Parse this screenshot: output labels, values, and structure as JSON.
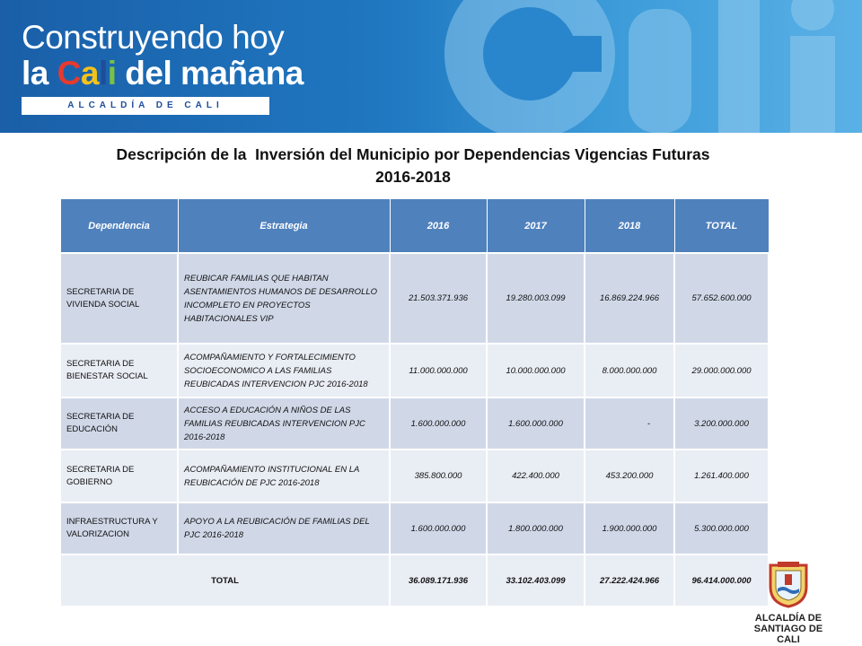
{
  "header": {
    "brand_line1": "Construyendo hoy",
    "brand_line2_pre": "la ",
    "brand_cali": [
      "C",
      "a",
      "l",
      "i"
    ],
    "brand_line2_post": " del mañana",
    "brand_tagline": "ALCALDÍA DE CALI"
  },
  "title": {
    "line1": "Descripción de la  Inversión del Municipio por Dependencias Vigencias Futuras",
    "line2": "2016-2018"
  },
  "table": {
    "headers": [
      "Dependencia",
      "Estrategia",
      "2016",
      "2017",
      "2018",
      "TOTAL"
    ],
    "rows": [
      {
        "dep": "SECRETARIA DE VIVIENDA SOCIAL",
        "est": "REUBICAR FAMILIAS QUE HABITAN ASENTAMIENTOS HUMANOS DE DESARROLLO INCOMPLETO EN PROYECTOS HABITACIONALES VIP",
        "y2016": "21.503.371.936",
        "y2017": "19.280.003.099",
        "y2018": "16.869.224.966",
        "total": "57.652.600.000"
      },
      {
        "dep": "SECRETARIA DE BIENESTAR SOCIAL",
        "est": "ACOMPAÑAMIENTO Y FORTALECIMIENTO SOCIOECONOMICO A LAS FAMILIAS REUBICADAS INTERVENCION PJC 2016-2018",
        "y2016": "11.000.000.000",
        "y2017": "10.000.000.000",
        "y2018": "8.000.000.000",
        "total": "29.000.000.000"
      },
      {
        "dep": "SECRETARIA DE EDUCACIÓN",
        "est": "ACCESO A EDUCACIÓN A NIÑOS DE LAS FAMILIAS REUBICADAS INTERVENCION PJC 2016-2018",
        "y2016": "1.600.000.000",
        "y2017": "1.600.000.000",
        "y2018": "-",
        "total": "3.200.000.000"
      },
      {
        "dep": "SECRETARIA DE GOBIERNO",
        "est": "ACOMPAÑAMIENTO INSTITUCIONAL EN LA REUBICACIÓN DE PJC 2016-2018",
        "y2016": "385.800.000",
        "y2017": "422.400.000",
        "y2018": "453.200.000",
        "total": "1.261.400.000"
      },
      {
        "dep": "INFRAESTRUCTURA Y VALORIZACION",
        "est": "APOYO A LA REUBICACIÓN DE FAMILIAS DEL PJC 2016-2018",
        "y2016": "1.600.000.000",
        "y2017": "1.800.000.000",
        "y2018": "1.900.000.000",
        "total": "5.300.000.000"
      }
    ],
    "total": {
      "label": "TOTAL",
      "y2016": "36.089.171.936",
      "y2017": "33.102.403.099",
      "y2018": "27.222.424.966",
      "total": "96.414.000.000"
    }
  },
  "footer_logo": {
    "caption_line1": "ALCALDÍA DE",
    "caption_line2": "SANTIAGO DE CALI"
  },
  "colors": {
    "header_bg": "#4f81bd",
    "row_odd": "#d0d8e8",
    "row_even": "#e9edf4",
    "banner_blue": "#1f78c1"
  }
}
